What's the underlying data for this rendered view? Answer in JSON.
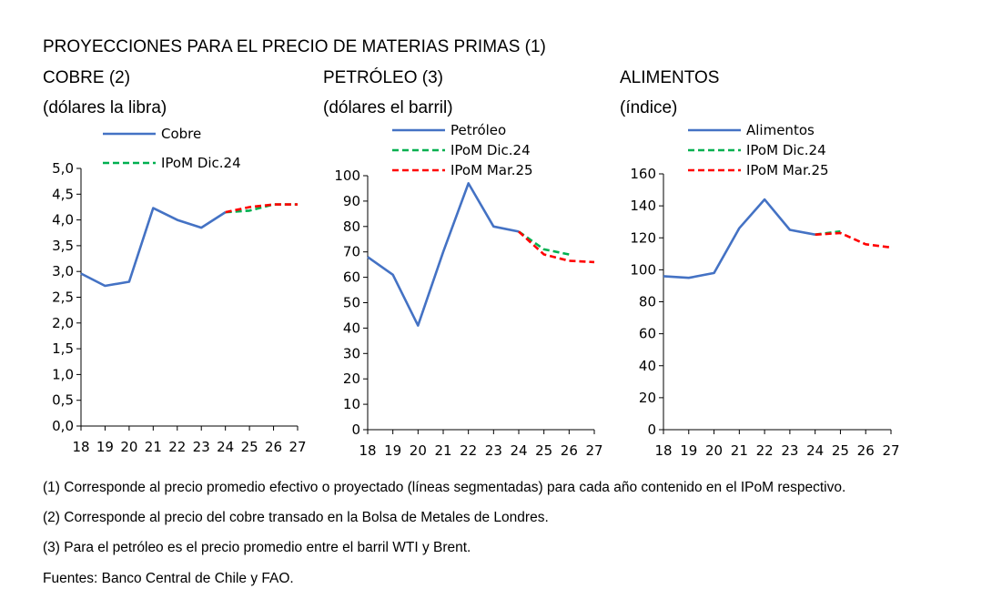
{
  "title": "PROYECCIONES PARA EL PRECIO DE MATERIAS PRIMAS (1)",
  "colors": {
    "actual": "#4472C4",
    "ipom_dic": "#00B050",
    "ipom_mar": "#FF0000",
    "axis": "#000000"
  },
  "chart_data": [
    {
      "type": "line",
      "title": "COBRE (2)",
      "subtitle": "(dólares la libra)",
      "x": [
        "18",
        "19",
        "20",
        "21",
        "22",
        "23",
        "24",
        "25",
        "26",
        "27"
      ],
      "ylim": [
        0,
        5
      ],
      "yticks": [
        "0,0",
        "0,5",
        "1,0",
        "1,5",
        "2,0",
        "2,5",
        "3,0",
        "3,5",
        "4,0",
        "4,5",
        "5,0"
      ],
      "grid": false,
      "legend": "top",
      "series": [
        {
          "name": "Cobre",
          "style": "solid",
          "color": "#4472C4",
          "x": [
            "18",
            "19",
            "20",
            "21",
            "22",
            "23",
            "24"
          ],
          "values": [
            2.96,
            2.72,
            2.8,
            4.23,
            4.0,
            3.85,
            4.15
          ]
        },
        {
          "name": "IPoM Dic.24",
          "style": "dashed",
          "color": "#00B050",
          "x": [
            "24",
            "25",
            "26",
            "27"
          ],
          "values": [
            4.15,
            4.18,
            4.3,
            4.3
          ]
        },
        {
          "name": "",
          "style": "dashed",
          "color": "#FF0000",
          "x": [
            "24",
            "25",
            "26",
            "27"
          ],
          "values": [
            4.15,
            4.25,
            4.3,
            4.3
          ]
        }
      ]
    },
    {
      "type": "line",
      "title": "PETRÓLEO (3)",
      "subtitle": "(dólares el barril)",
      "x": [
        "18",
        "19",
        "20",
        "21",
        "22",
        "23",
        "24",
        "25",
        "26",
        "27"
      ],
      "ylim": [
        0,
        100
      ],
      "yticks": [
        "0",
        "10",
        "20",
        "30",
        "40",
        "50",
        "60",
        "70",
        "80",
        "90",
        "100"
      ],
      "grid": false,
      "legend": "top",
      "series": [
        {
          "name": "Petróleo",
          "style": "solid",
          "color": "#4472C4",
          "x": [
            "18",
            "19",
            "20",
            "21",
            "22",
            "23",
            "24"
          ],
          "values": [
            68,
            61,
            41,
            70,
            97,
            80,
            78
          ]
        },
        {
          "name": "IPoM Dic.24",
          "style": "dashed",
          "color": "#00B050",
          "x": [
            "24",
            "25",
            "26"
          ],
          "values": [
            78,
            71,
            69
          ]
        },
        {
          "name": "IPoM Mar.25",
          "style": "dashed",
          "color": "#FF0000",
          "x": [
            "24",
            "25",
            "26",
            "27"
          ],
          "values": [
            78,
            69,
            66.5,
            66
          ]
        }
      ]
    },
    {
      "type": "line",
      "title": "ALIMENTOS",
      "subtitle": "(índice)",
      "x": [
        "18",
        "19",
        "20",
        "21",
        "22",
        "23",
        "24",
        "25",
        "26",
        "27"
      ],
      "ylim": [
        0,
        160
      ],
      "yticks": [
        "0",
        "20",
        "40",
        "60",
        "80",
        "100",
        "120",
        "140",
        "160"
      ],
      "grid": false,
      "legend": "top",
      "series": [
        {
          "name": "Alimentos",
          "style": "solid",
          "color": "#4472C4",
          "x": [
            "18",
            "19",
            "20",
            "21",
            "22",
            "23",
            "24"
          ],
          "values": [
            96,
            95,
            98,
            126,
            144,
            125,
            122
          ]
        },
        {
          "name": "IPoM Dic.24",
          "style": "dashed",
          "color": "#00B050",
          "x": [
            "24",
            "25"
          ],
          "values": [
            122,
            124
          ]
        },
        {
          "name": "IPoM Mar.25",
          "style": "dashed",
          "color": "#FF0000",
          "x": [
            "24",
            "25",
            "26",
            "27"
          ],
          "values": [
            122,
            123,
            116,
            114
          ]
        }
      ]
    }
  ],
  "notes": [
    "(1) Corresponde al precio promedio efectivo o proyectado (líneas segmentadas) para cada año contenido en el IPoM respectivo.",
    "(2) Corresponde al precio del cobre transado en la Bolsa de Metales de Londres.",
    "(3) Para el petróleo es el precio promedio entre el barril WTI y Brent.",
    "Fuentes: Banco Central de Chile y FAO."
  ]
}
